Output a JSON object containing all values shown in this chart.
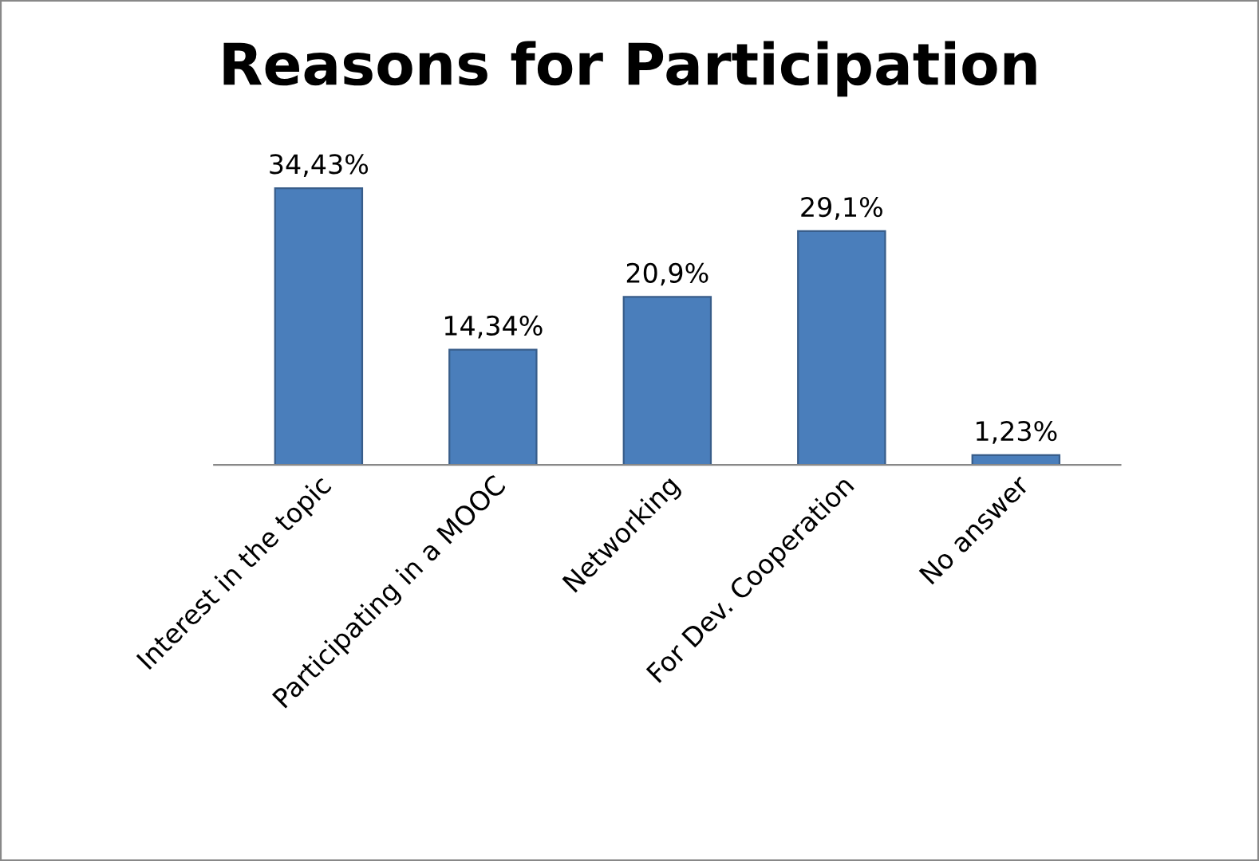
{
  "chart_data": {
    "type": "bar",
    "title": "Reasons for Participation",
    "categories": [
      "Interest in the topic",
      "Participating in a MOOC",
      "Networking",
      "For Dev. Cooperation",
      "No answer"
    ],
    "values": [
      34.43,
      14.34,
      20.9,
      29.1,
      1.23
    ],
    "value_labels": [
      "34,43%",
      "14,34%",
      "20,9%",
      "29,1%",
      "1,23%"
    ],
    "color": "#4a7ebb",
    "grid": false,
    "legend": false
  }
}
